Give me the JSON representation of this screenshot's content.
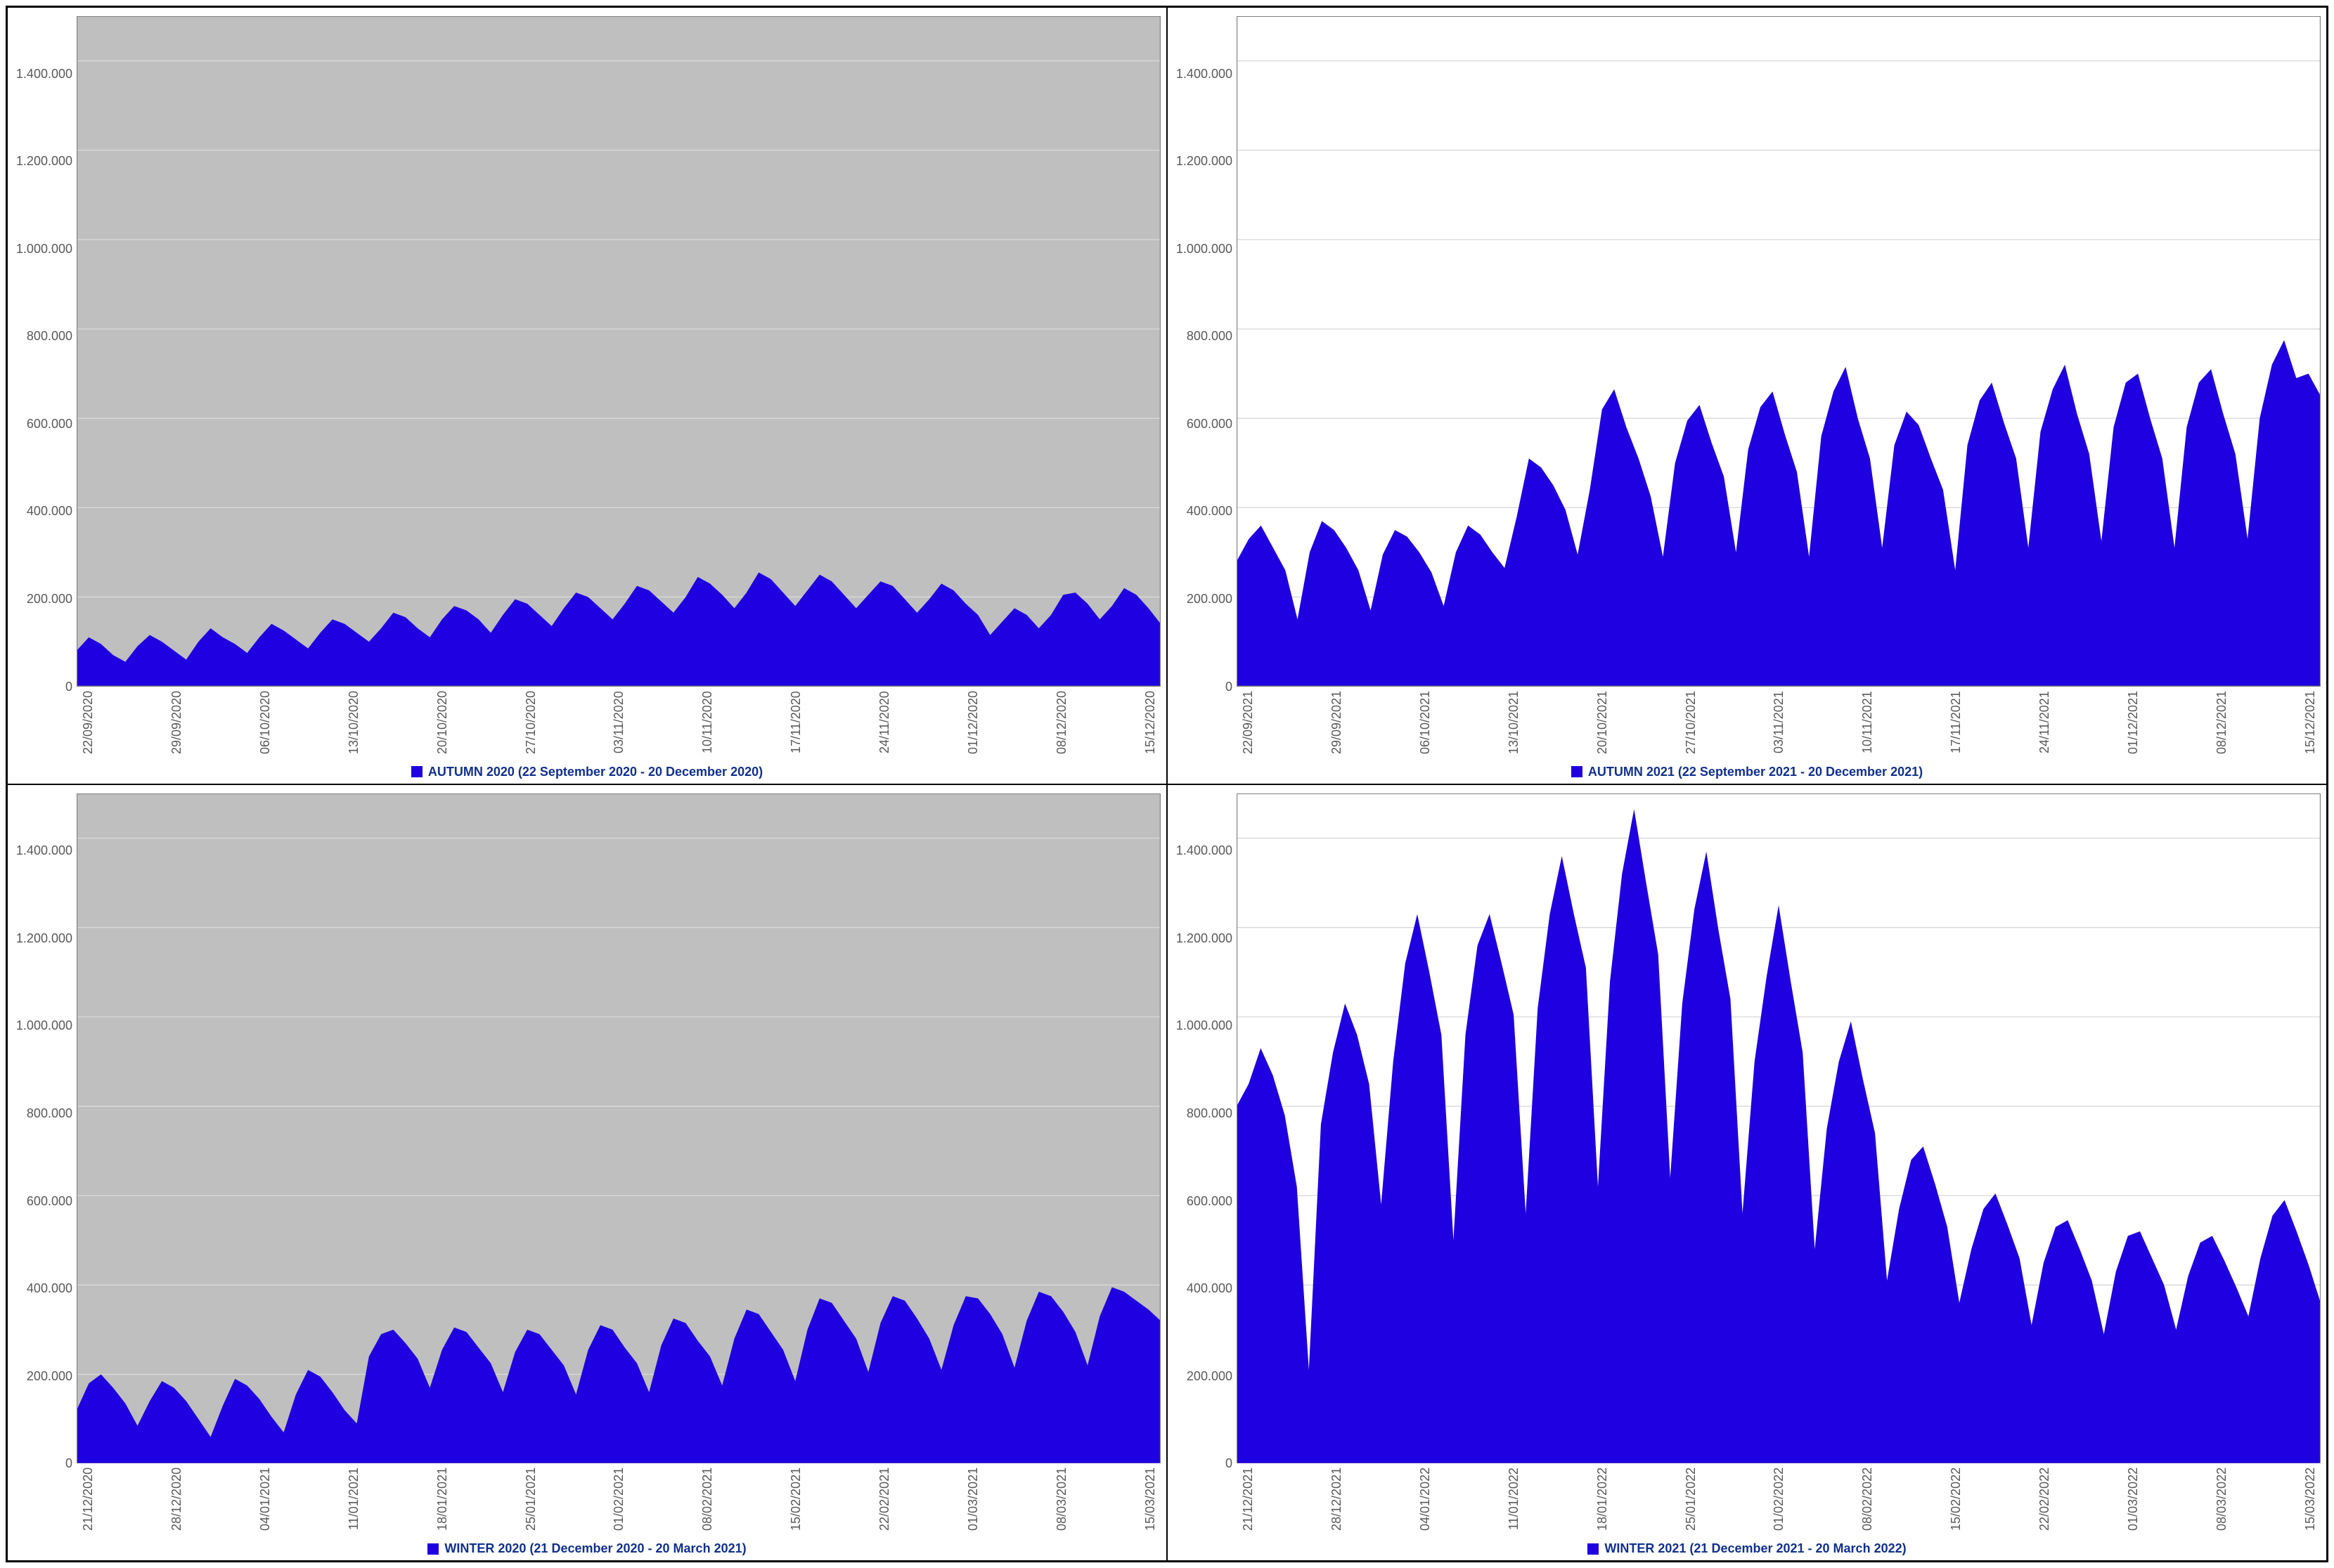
{
  "layout": {
    "rows": 2,
    "cols": 2,
    "border_color": "#000000"
  },
  "shared": {
    "ylim": [
      0,
      1500000
    ],
    "ytick_step": 200000,
    "ytick_labels": [
      "0",
      "200.000",
      "400.000",
      "600.000",
      "800.000",
      "1.000.000",
      "1.200.000",
      "1.400.000"
    ],
    "grid_color": "#d9d9d9",
    "axis_label_color": "#595959",
    "series_color": "#1f00e0",
    "legend_color": "#103090",
    "tick_fontsize": 18,
    "legend_fontsize": 18
  },
  "panels": [
    {
      "id": "autumn2020",
      "legend": "AUTUMN 2020 (22 September 2020 - 20 December 2020)",
      "plot_background": "#bfbfbf",
      "x_labels": [
        "22/09/2020",
        "29/09/2020",
        "06/10/2020",
        "13/10/2020",
        "20/10/2020",
        "27/10/2020",
        "03/11/2020",
        "10/11/2020",
        "17/11/2020",
        "24/11/2020",
        "01/12/2020",
        "08/12/2020",
        "15/12/2020"
      ],
      "values": [
        80000,
        110000,
        95000,
        70000,
        55000,
        90000,
        115000,
        100000,
        80000,
        60000,
        100000,
        130000,
        110000,
        95000,
        75000,
        110000,
        140000,
        125000,
        105000,
        85000,
        120000,
        150000,
        140000,
        120000,
        100000,
        130000,
        165000,
        155000,
        130000,
        110000,
        150000,
        180000,
        170000,
        150000,
        120000,
        160000,
        195000,
        185000,
        160000,
        135000,
        175000,
        210000,
        200000,
        175000,
        150000,
        185000,
        225000,
        215000,
        190000,
        165000,
        200000,
        245000,
        230000,
        205000,
        175000,
        210000,
        255000,
        240000,
        210000,
        180000,
        215000,
        250000,
        235000,
        205000,
        175000,
        205000,
        235000,
        225000,
        195000,
        165000,
        195000,
        230000,
        215000,
        185000,
        160000,
        115000,
        145000,
        175000,
        160000,
        130000,
        160000,
        205000,
        210000,
        185000,
        150000,
        180000,
        220000,
        205000,
        175000,
        140000
      ]
    },
    {
      "id": "autumn2021",
      "legend": "AUTUMN 2021 (22 September 2021 - 20 December 2021)",
      "plot_background": "#ffffff",
      "x_labels": [
        "22/09/2021",
        "29/09/2021",
        "06/10/2021",
        "13/10/2021",
        "20/10/2021",
        "27/10/2021",
        "03/11/2021",
        "10/11/2021",
        "17/11/2021",
        "24/11/2021",
        "01/12/2021",
        "08/12/2021",
        "15/12/2021"
      ],
      "values": [
        280000,
        330000,
        360000,
        310000,
        260000,
        150000,
        300000,
        370000,
        350000,
        310000,
        260000,
        170000,
        295000,
        350000,
        335000,
        300000,
        255000,
        180000,
        300000,
        360000,
        340000,
        300000,
        265000,
        380000,
        510000,
        490000,
        450000,
        395000,
        295000,
        440000,
        620000,
        665000,
        580000,
        510000,
        425000,
        290000,
        500000,
        595000,
        630000,
        545000,
        470000,
        300000,
        530000,
        625000,
        660000,
        565000,
        480000,
        290000,
        560000,
        660000,
        715000,
        600000,
        510000,
        310000,
        540000,
        615000,
        585000,
        510000,
        440000,
        260000,
        540000,
        640000,
        680000,
        590000,
        510000,
        310000,
        570000,
        665000,
        720000,
        610000,
        520000,
        325000,
        580000,
        680000,
        700000,
        600000,
        510000,
        310000,
        580000,
        680000,
        710000,
        610000,
        520000,
        330000,
        600000,
        720000,
        775000,
        690000,
        700000,
        650000
      ]
    },
    {
      "id": "winter2020",
      "legend": "WINTER 2020 (21 December 2020 - 20 March 2021)",
      "plot_background": "#bfbfbf",
      "x_labels": [
        "21/12/2020",
        "28/12/2020",
        "04/01/2021",
        "11/01/2021",
        "18/01/2021",
        "25/01/2021",
        "01/02/2021",
        "08/02/2021",
        "15/02/2021",
        "22/02/2021",
        "01/03/2021",
        "08/03/2021",
        "15/03/2021"
      ],
      "values": [
        120000,
        180000,
        200000,
        170000,
        135000,
        85000,
        140000,
        185000,
        170000,
        140000,
        100000,
        60000,
        130000,
        190000,
        175000,
        145000,
        105000,
        70000,
        155000,
        210000,
        195000,
        160000,
        120000,
        90000,
        240000,
        290000,
        300000,
        270000,
        235000,
        170000,
        255000,
        305000,
        295000,
        260000,
        225000,
        160000,
        250000,
        300000,
        290000,
        255000,
        220000,
        155000,
        255000,
        310000,
        300000,
        260000,
        225000,
        160000,
        265000,
        325000,
        315000,
        275000,
        240000,
        175000,
        280000,
        345000,
        335000,
        295000,
        255000,
        185000,
        300000,
        370000,
        360000,
        320000,
        280000,
        205000,
        315000,
        375000,
        365000,
        325000,
        280000,
        210000,
        310000,
        375000,
        370000,
        335000,
        290000,
        215000,
        320000,
        385000,
        375000,
        340000,
        295000,
        220000,
        330000,
        395000,
        385000,
        365000,
        345000,
        320000
      ]
    },
    {
      "id": "winter2021",
      "legend": "WINTER 2021 (21 December 2021 - 20 March 2022)",
      "plot_background": "#ffffff",
      "x_labels": [
        "21/12/2021",
        "28/12/2021",
        "04/01/2022",
        "11/01/2022",
        "18/01/2022",
        "25/01/2022",
        "01/02/2022",
        "08/02/2022",
        "15/02/2022",
        "22/02/2022",
        "01/03/2022",
        "08/03/2022",
        "15/03/2022"
      ],
      "values": [
        800000,
        850000,
        930000,
        870000,
        780000,
        620000,
        210000,
        760000,
        920000,
        1030000,
        960000,
        850000,
        580000,
        900000,
        1120000,
        1230000,
        1100000,
        960000,
        500000,
        960000,
        1160000,
        1230000,
        1120000,
        1005000,
        560000,
        1020000,
        1230000,
        1360000,
        1230000,
        1110000,
        620000,
        1080000,
        1320000,
        1465000,
        1300000,
        1140000,
        640000,
        1030000,
        1240000,
        1370000,
        1195000,
        1040000,
        560000,
        900000,
        1090000,
        1250000,
        1080000,
        920000,
        480000,
        750000,
        900000,
        990000,
        860000,
        740000,
        410000,
        570000,
        680000,
        710000,
        625000,
        530000,
        360000,
        480000,
        570000,
        605000,
        535000,
        460000,
        310000,
        450000,
        530000,
        545000,
        480000,
        410000,
        290000,
        430000,
        510000,
        520000,
        460000,
        400000,
        300000,
        420000,
        495000,
        510000,
        455000,
        395000,
        330000,
        460000,
        555000,
        590000,
        520000,
        445000,
        360000
      ]
    }
  ]
}
